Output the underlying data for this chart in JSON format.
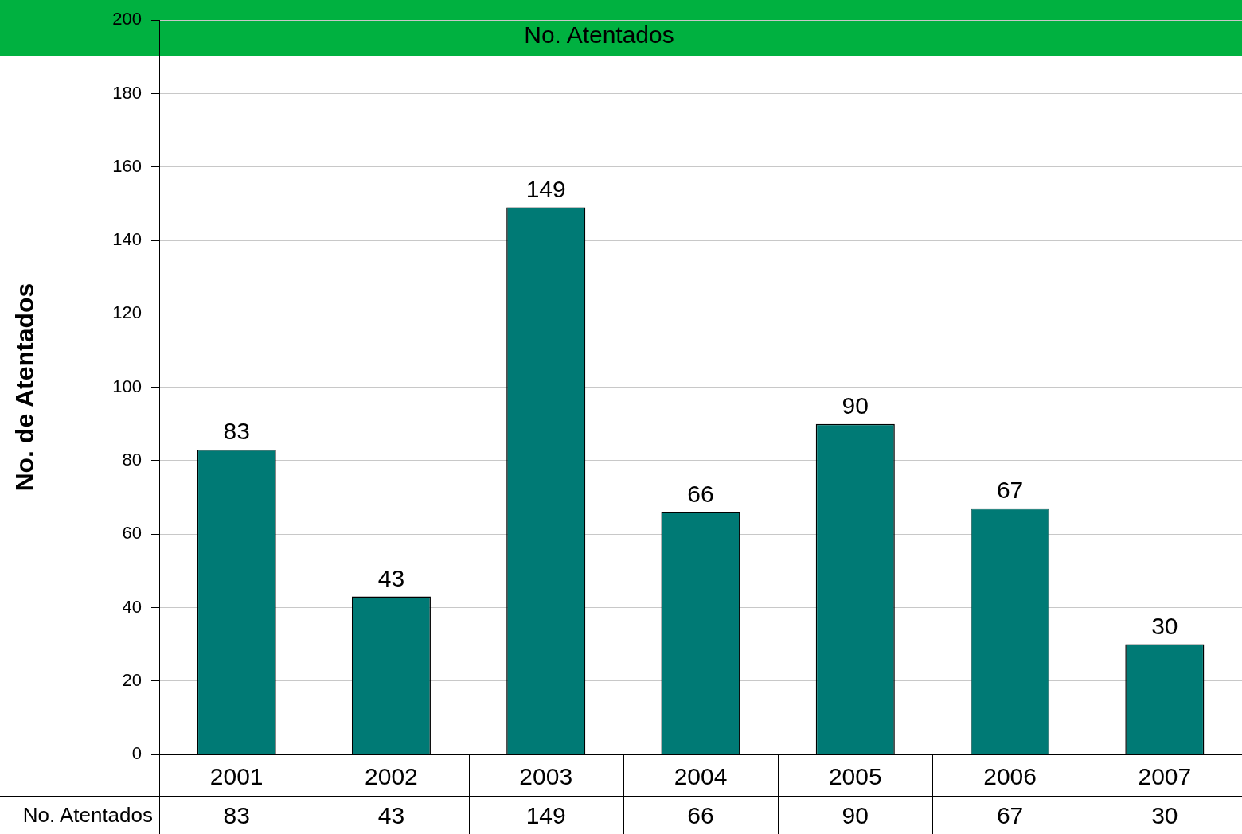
{
  "chart_data": {
    "type": "bar",
    "title": "No. Atentados",
    "ylabel": "No. de Atentados",
    "categories": [
      "2001",
      "2002",
      "2003",
      "2004",
      "2005",
      "2006",
      "2007"
    ],
    "series": [
      {
        "name": "No. Atentados",
        "color": "#007a75",
        "values": [
          83,
          43,
          149,
          66,
          90,
          67,
          30
        ]
      }
    ],
    "ylim": [
      0,
      200
    ],
    "yticks": [
      0,
      20,
      40,
      60,
      80,
      100,
      120,
      140,
      160,
      180,
      200
    ],
    "grid": "y",
    "data_labels": true,
    "annotations": [
      "83",
      "43",
      "149",
      "66",
      "90",
      "67",
      "30"
    ]
  }
}
